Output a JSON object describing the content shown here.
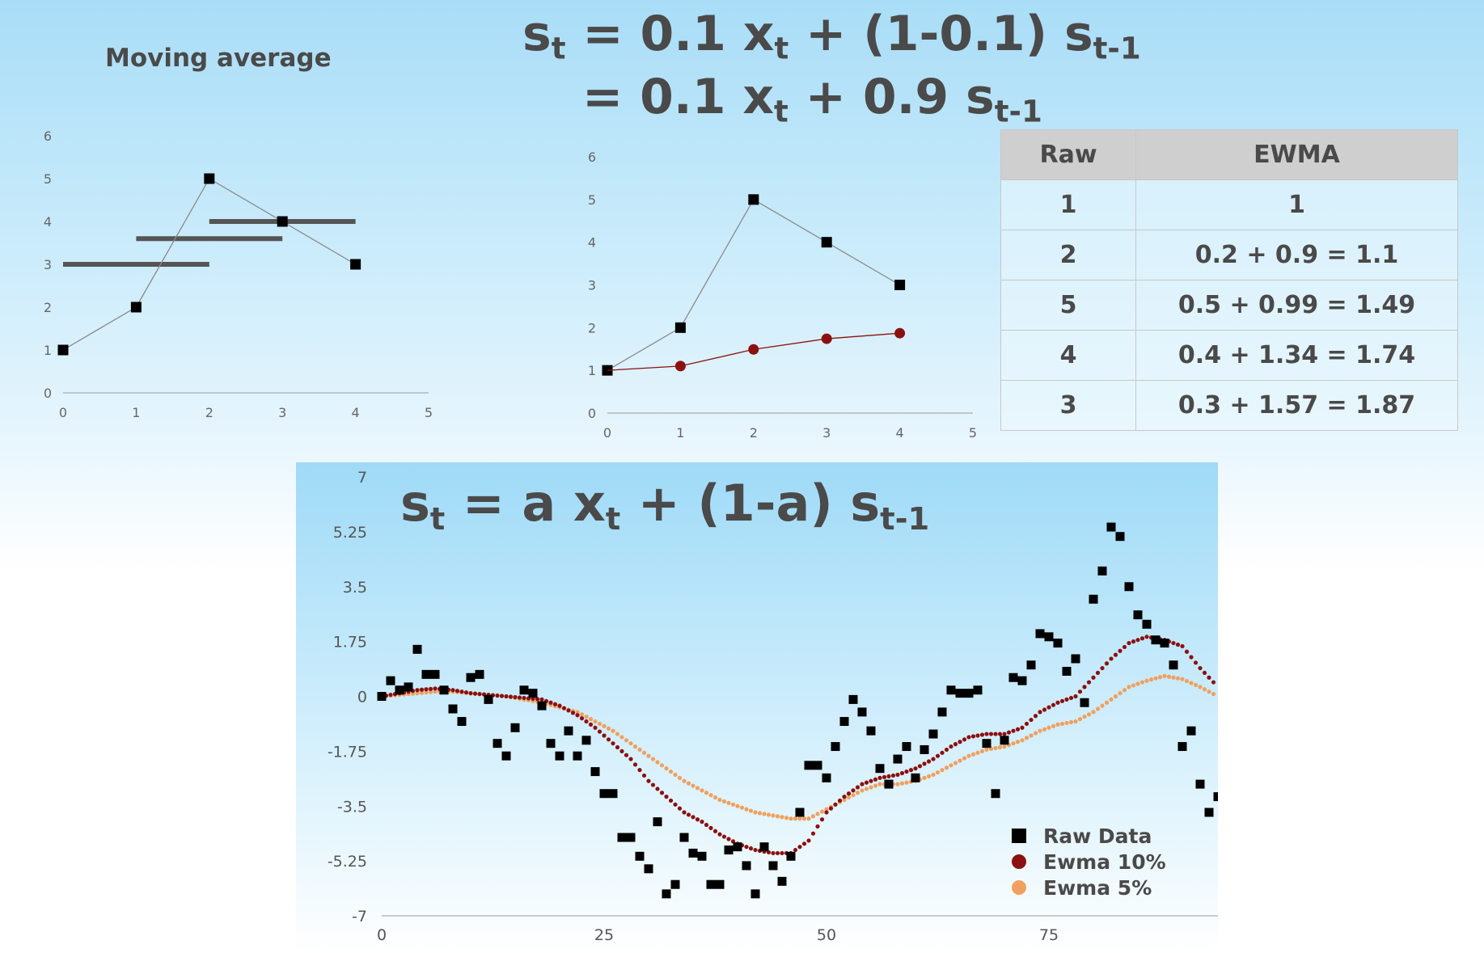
{
  "formulas": {
    "line1": {
      "s": "s",
      "s_sub": "t",
      "eq": " = 0.1 x",
      "x_sub": "t",
      "rest": " + (1-0.1) s",
      "rest_sub": "t-1"
    },
    "line2": {
      "eq": "= 0.1 x",
      "x_sub": "t",
      "rest": " + 0.9 s",
      "rest_sub": "t-1"
    },
    "line3": {
      "s": "s",
      "s_sub": "t",
      "eq": " = a x",
      "x_sub": "t",
      "rest": " + (1-a) s",
      "rest_sub": "t-1"
    }
  },
  "moving_average_title": "Moving average",
  "table": {
    "headers": [
      "Raw",
      "EWMA"
    ],
    "rows": [
      [
        "1",
        "1"
      ],
      [
        "2",
        "0.2 + 0.9 = 1.1"
      ],
      [
        "5",
        "0.5 + 0.99 = 1.49"
      ],
      [
        "4",
        "0.4 + 1.34 = 1.74"
      ],
      [
        "3",
        "0.3 + 1.57 = 1.87"
      ]
    ]
  },
  "colors": {
    "raw": "#000000",
    "ewma10": "#8b1010",
    "ewma5": "#f0a060",
    "ma_bar": "#555555",
    "line": "#8a8a8a",
    "axis": "#999999"
  },
  "chart_data": [
    {
      "type": "line",
      "title": "Moving average",
      "xlim": [
        0,
        5
      ],
      "ylim": [
        0,
        6
      ],
      "x_ticks": [
        "0",
        "1",
        "2",
        "3",
        "4",
        "5"
      ],
      "y_ticks": [
        "0",
        "1",
        "2",
        "3",
        "4",
        "5",
        "6"
      ],
      "series": [
        {
          "x": [
            0,
            1,
            2,
            3,
            4
          ],
          "values": [
            1,
            2,
            5,
            4,
            3
          ]
        }
      ],
      "moving_average_segments": [
        {
          "x0": 0,
          "x1": 2,
          "y": 3
        },
        {
          "x0": 1,
          "x1": 3,
          "y": 3.6
        },
        {
          "x0": 2,
          "x1": 4,
          "y": 4
        }
      ]
    },
    {
      "type": "line",
      "xlim": [
        0,
        5
      ],
      "ylim": [
        0,
        6
      ],
      "x_ticks": [
        "0",
        "1",
        "2",
        "3",
        "4",
        "5"
      ],
      "y_ticks": [
        "0",
        "1",
        "2",
        "3",
        "4",
        "5",
        "6"
      ],
      "series": [
        {
          "x": [
            0,
            1,
            2,
            3,
            4
          ],
          "values": [
            1,
            2,
            5,
            4,
            3
          ]
        },
        {
          "x": [
            0,
            1,
            2,
            3,
            4
          ],
          "values": [
            1,
            1.1,
            1.49,
            1.74,
            1.87
          ]
        }
      ]
    },
    {
      "type": "scatter",
      "xlim": [
        0,
        94
      ],
      "ylim": [
        -7,
        7
      ],
      "x_ticks": [
        "0",
        "25",
        "50",
        "75"
      ],
      "y_ticks": [
        "7",
        "5.25",
        "3.5",
        "1.75",
        "0",
        "-1.75",
        "-3.5",
        "-5.25",
        "-7"
      ],
      "legend": "bottom-right",
      "series": [
        {
          "name": "Raw Data",
          "x": [
            0,
            1,
            2,
            3,
            4,
            5,
            6,
            7,
            8,
            9,
            10,
            11,
            12,
            13,
            14,
            15,
            16,
            17,
            18,
            19,
            20,
            21,
            22,
            23,
            24,
            25,
            26,
            27,
            28,
            29,
            30,
            31,
            32,
            33,
            34,
            35,
            36,
            37,
            38,
            39,
            40,
            41,
            42,
            43,
            44,
            45,
            46,
            47,
            48,
            49,
            50,
            51,
            52,
            53,
            54,
            55,
            56,
            57,
            58,
            59,
            60,
            61,
            62,
            63,
            64,
            65,
            66,
            67,
            68,
            69,
            70,
            71,
            72,
            73,
            74,
            75,
            76,
            77,
            78,
            79,
            80,
            81,
            82,
            83,
            84,
            85,
            86,
            87,
            88,
            89,
            90,
            91,
            92,
            93,
            94
          ],
          "values": [
            0,
            0.5,
            0.2,
            0.3,
            1.5,
            0.7,
            0.7,
            0.2,
            -0.4,
            -0.8,
            0.6,
            0.7,
            -0.1,
            -1.5,
            -1.9,
            -1.0,
            0.2,
            0.1,
            -0.3,
            -1.5,
            -1.9,
            -1.1,
            -1.9,
            -1.4,
            -2.4,
            -3.1,
            -3.1,
            -4.5,
            -4.5,
            -5.1,
            -5.5,
            -4.0,
            -6.3,
            -6.0,
            -4.5,
            -5.0,
            -5.1,
            -6.0,
            -6.0,
            -4.9,
            -4.8,
            -5.4,
            -6.3,
            -4.8,
            -5.4,
            -5.9,
            -5.1,
            -3.7,
            -2.2,
            -2.2,
            -2.6,
            -1.6,
            -0.8,
            -0.1,
            -0.5,
            -1.1,
            -2.3,
            -2.8,
            -2.0,
            -1.6,
            -2.6,
            -1.7,
            -1.2,
            -0.5,
            0.2,
            0.1,
            0.1,
            0.2,
            -1.5,
            -3.1,
            -1.4,
            0.6,
            0.5,
            1.0,
            2.0,
            1.9,
            1.7,
            0.8,
            1.2,
            -0.2,
            3.1,
            4.0,
            5.4,
            5.1,
            3.5,
            2.6,
            2.3,
            1.8,
            1.7,
            1.0,
            -1.6,
            -1.1,
            -2.8,
            -3.7,
            -3.2
          ]
        },
        {
          "name": "Ewma 10%",
          "x": [
            0,
            2,
            4,
            6,
            8,
            10,
            12,
            14,
            16,
            18,
            20,
            22,
            24,
            26,
            28,
            30,
            32,
            34,
            36,
            38,
            40,
            42,
            44,
            46,
            48,
            50,
            52,
            54,
            56,
            58,
            60,
            62,
            64,
            66,
            68,
            70,
            72,
            74,
            76,
            78,
            80,
            82,
            84,
            86,
            88,
            90,
            92,
            94
          ],
          "values": [
            0,
            0.1,
            0.2,
            0.25,
            0.2,
            0.1,
            0.05,
            0,
            -0.05,
            -0.1,
            -0.3,
            -0.6,
            -1.0,
            -1.5,
            -2.0,
            -2.7,
            -3.2,
            -3.7,
            -4.0,
            -4.4,
            -4.7,
            -4.9,
            -5.0,
            -5.0,
            -4.6,
            -3.7,
            -3.2,
            -2.8,
            -2.6,
            -2.5,
            -2.3,
            -2.0,
            -1.6,
            -1.3,
            -1.2,
            -1.2,
            -1.0,
            -0.5,
            -0.2,
            0,
            0.6,
            1.2,
            1.7,
            1.9,
            1.8,
            1.6,
            0.9,
            0.3
          ]
        },
        {
          "name": "Ewma 5%",
          "x": [
            0,
            2,
            4,
            6,
            8,
            10,
            12,
            14,
            16,
            18,
            20,
            22,
            24,
            26,
            28,
            30,
            32,
            34,
            36,
            38,
            40,
            42,
            44,
            46,
            48,
            50,
            52,
            54,
            56,
            58,
            60,
            62,
            64,
            66,
            68,
            70,
            72,
            74,
            76,
            78,
            80,
            82,
            84,
            86,
            88,
            90,
            92,
            94
          ],
          "values": [
            0,
            0.05,
            0.1,
            0.15,
            0.15,
            0.1,
            0.05,
            0,
            -0.1,
            -0.2,
            -0.35,
            -0.5,
            -0.8,
            -1.1,
            -1.5,
            -1.9,
            -2.3,
            -2.7,
            -3.0,
            -3.3,
            -3.5,
            -3.7,
            -3.8,
            -3.9,
            -3.9,
            -3.6,
            -3.3,
            -3.0,
            -2.8,
            -2.8,
            -2.7,
            -2.5,
            -2.2,
            -1.9,
            -1.7,
            -1.6,
            -1.4,
            -1.1,
            -0.9,
            -0.8,
            -0.5,
            -0.1,
            0.3,
            0.5,
            0.65,
            0.55,
            0.3,
            0
          ]
        }
      ]
    }
  ]
}
